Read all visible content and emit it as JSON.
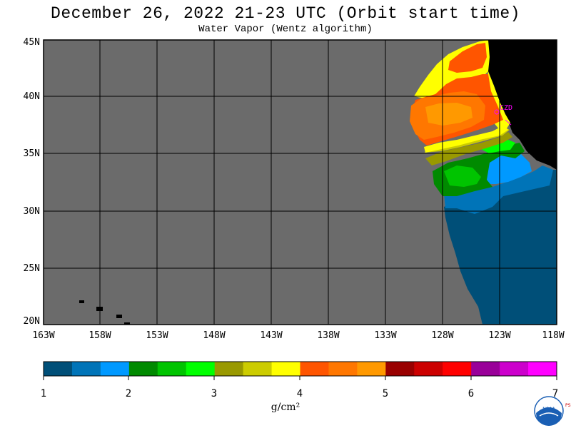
{
  "header": {
    "title": "December 26, 2022  21-23 UTC  (Orbit start time)",
    "subtitle": "Water Vapor (Wentz algorithm)"
  },
  "map": {
    "lat_labels": [
      "45N",
      "40N",
      "35N",
      "30N",
      "25N",
      "20N"
    ],
    "lon_labels": [
      "163W",
      "158W",
      "153W",
      "148W",
      "143W",
      "138W",
      "133W",
      "128W",
      "123W",
      "118W"
    ],
    "station_label": "CZD",
    "colors": {
      "no_data": "#6b6b6b",
      "land": "#000000",
      "grid": "#000000"
    }
  },
  "colorbar": {
    "tick_labels": [
      "1",
      "2",
      "3",
      "4",
      "5",
      "6",
      "7"
    ],
    "unit_label": "g/cm²",
    "colors": [
      "#004f78",
      "#0074b8",
      "#0099ff",
      "#008a00",
      "#00c400",
      "#00ff00",
      "#999900",
      "#cccc00",
      "#ffff00",
      "#ff5500",
      "#ff7700",
      "#ff9900",
      "#990000",
      "#cc0000",
      "#ff0000",
      "#990099",
      "#cc00cc",
      "#ff00ff"
    ]
  },
  "logo": {
    "text": "NOAA",
    "side_text": "PSL"
  }
}
